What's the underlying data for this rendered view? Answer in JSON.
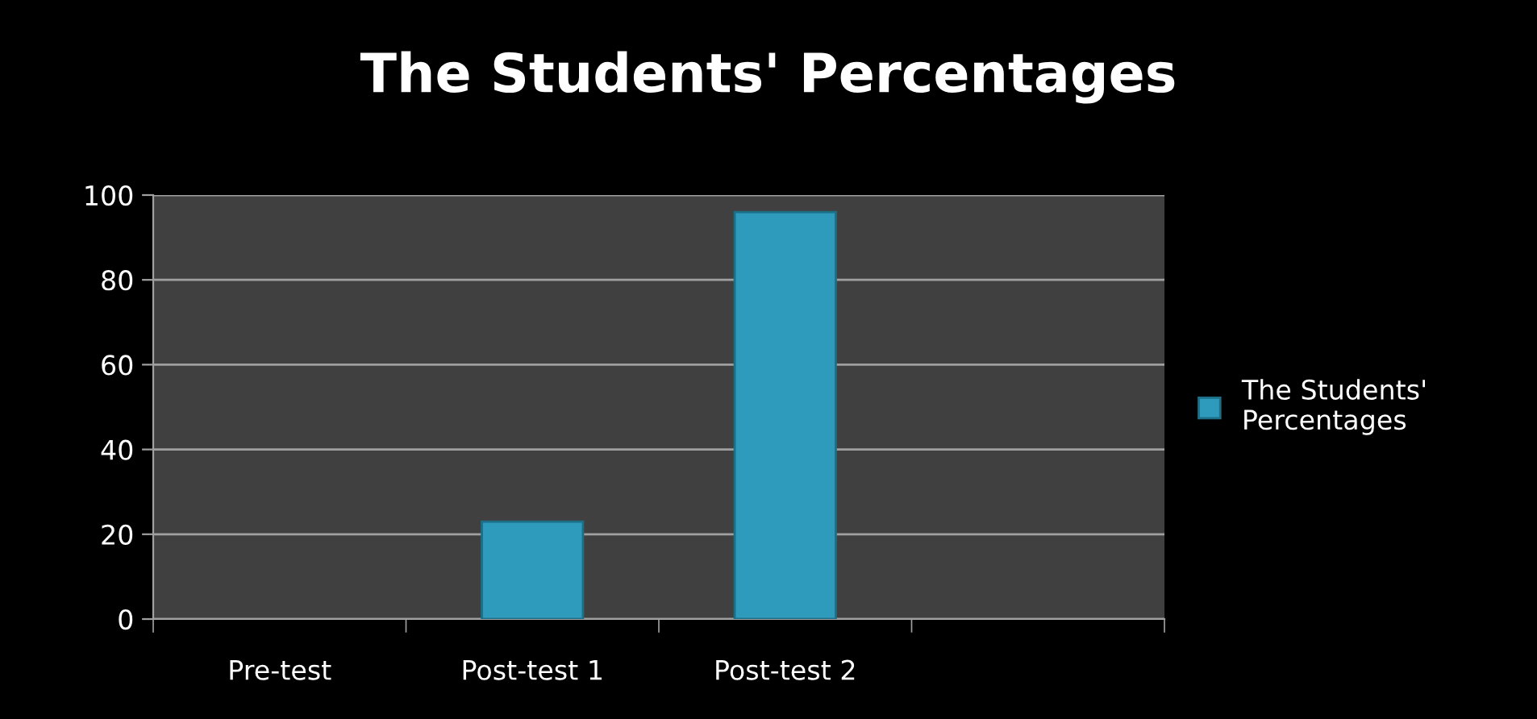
{
  "chart_data": {
    "type": "bar",
    "title": "The Students' Percentages",
    "categories": [
      "Pre-test",
      "Post-test 1",
      "Post-test 2",
      null
    ],
    "series": [
      {
        "name": "The Students' Percentages",
        "color": "#2e9bbd",
        "values": [
          null,
          23,
          96,
          null
        ]
      }
    ],
    "ylim": [
      0,
      100
    ],
    "yticks": [
      0,
      20,
      40,
      60,
      80,
      100
    ],
    "grid": "y",
    "legend": "right"
  }
}
